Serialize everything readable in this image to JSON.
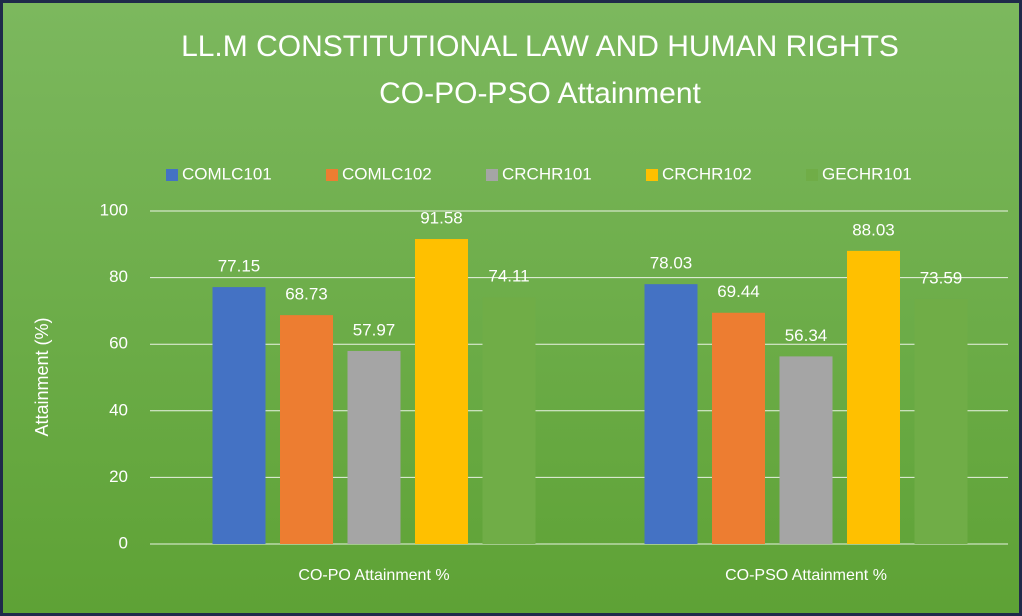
{
  "chart_data": {
    "type": "bar",
    "title": "LL.M CONSTITUTIONAL LAW AND HUMAN RIGHTS",
    "subtitle": "CO-PO-PSO Attainment",
    "y_label": "Attainment (%)",
    "categories": [
      "CO-PO Attainment %",
      "CO-PSO Attainment %"
    ],
    "series": [
      {
        "name": "COMLC101",
        "color": "#4472c4",
        "values": [
          77.15,
          78.03
        ]
      },
      {
        "name": "COMLC102",
        "color": "#ed7d31",
        "values": [
          68.73,
          69.44
        ]
      },
      {
        "name": "CRCHR101",
        "color": "#a5a5a5",
        "values": [
          57.97,
          56.34
        ]
      },
      {
        "name": "CRCHR102",
        "color": "#ffc000",
        "values": [
          91.58,
          88.03
        ]
      },
      {
        "name": "GECHR101",
        "color": "#70ad47",
        "values": [
          74.11,
          73.59
        ]
      }
    ],
    "ylim": [
      0,
      100
    ],
    "yticks": [
      0,
      20,
      40,
      60,
      80,
      100
    ],
    "grid": true,
    "legend": "top"
  }
}
